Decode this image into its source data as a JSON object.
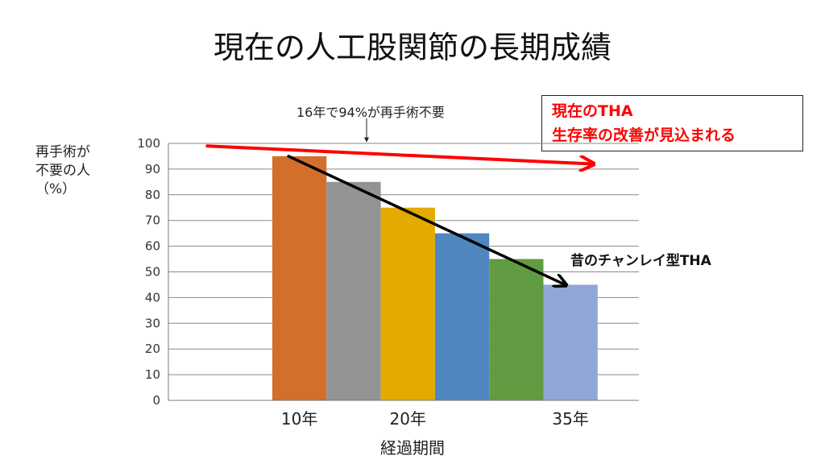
{
  "title": "現在の人工股関節の長期成績",
  "annotations": {
    "top_note": "16年で94%が再手術不要",
    "callout_red_line1": "現在のTHA",
    "callout_red_line2": "生存率の改善が見込まれる",
    "callout_black": "昔のチャンレイ型THA"
  },
  "chart_data": {
    "type": "bar",
    "title": "現在の人工股関節の長期成績",
    "ylabel": "再手術が\n不要の人\n（%）",
    "xlabel": "経過期間",
    "ylim": [
      0,
      100
    ],
    "yticks": [
      0,
      10,
      20,
      30,
      40,
      50,
      60,
      70,
      80,
      90,
      100
    ],
    "grid": true,
    "xtick_labels": [
      {
        "label": "10年",
        "bar_index": 0
      },
      {
        "label": "20年",
        "bar_index": 2
      },
      {
        "label": "35年",
        "bar_index": 5
      }
    ],
    "values": [
      95,
      85,
      75,
      65,
      55,
      45
    ],
    "bar_colors": [
      "#d2702b",
      "#939393",
      "#e4aa00",
      "#4f86c0",
      "#629c42",
      "#91a6d6"
    ],
    "trend_lines": [
      {
        "name": "現在のTHA",
        "color": "#ff0000",
        "from": [
          -1.2,
          99
        ],
        "to": [
          5.9,
          92
        ]
      },
      {
        "name": "昔のチャンレイ型THA",
        "color": "#000000",
        "from": [
          0.3,
          95
        ],
        "to": [
          5.4,
          45
        ]
      }
    ]
  }
}
